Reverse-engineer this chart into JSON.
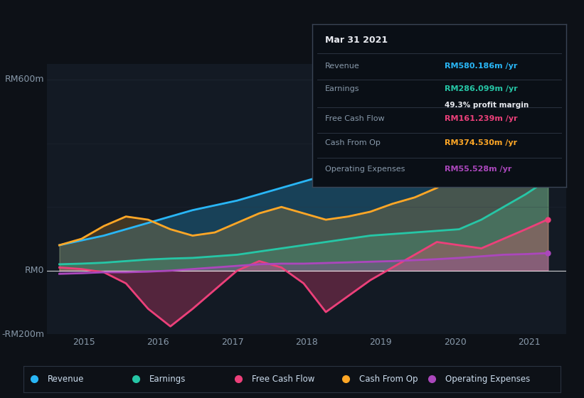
{
  "background_color": "#0d1117",
  "plot_bg_color": "#131a24",
  "ylim": [
    -200,
    650
  ],
  "xlim": [
    2014.5,
    2021.5
  ],
  "xticks": [
    2015,
    2016,
    2017,
    2018,
    2019,
    2020,
    2021
  ],
  "grid_color": "#2a3340",
  "colors": {
    "revenue": "#29b6f6",
    "earnings": "#26c6a6",
    "free_cash_flow": "#ec407a",
    "cash_from_op": "#ffa726",
    "operating_expenses": "#ab47bc"
  },
  "tooltip": {
    "date": "Mar 31 2021",
    "revenue_label": "Revenue",
    "revenue_value": "RM580.186m /yr",
    "earnings_label": "Earnings",
    "earnings_value": "RM286.099m /yr",
    "profit_margin": "49.3% profit margin",
    "fcf_label": "Free Cash Flow",
    "fcf_value": "RM161.239m /yr",
    "cfo_label": "Cash From Op",
    "cfo_value": "RM374.530m /yr",
    "opex_label": "Operating Expenses",
    "opex_value": "RM55.528m /yr"
  },
  "legend": [
    {
      "label": "Revenue",
      "color": "#29b6f6"
    },
    {
      "label": "Earnings",
      "color": "#26c6a6"
    },
    {
      "label": "Free Cash Flow",
      "color": "#ec407a"
    },
    {
      "label": "Cash From Op",
      "color": "#ffa726"
    },
    {
      "label": "Operating Expenses",
      "color": "#ab47bc"
    }
  ],
  "revenue": [
    80,
    95,
    110,
    130,
    150,
    170,
    190,
    205,
    220,
    240,
    260,
    280,
    300,
    330,
    360,
    390,
    420,
    450,
    480,
    510,
    540,
    570,
    580
  ],
  "earnings": [
    20,
    22,
    25,
    30,
    35,
    38,
    40,
    45,
    50,
    60,
    70,
    80,
    90,
    100,
    110,
    115,
    120,
    125,
    130,
    160,
    200,
    240,
    286
  ],
  "free_cash_flow": [
    10,
    5,
    -5,
    -40,
    -120,
    -175,
    -120,
    -60,
    0,
    30,
    10,
    -40,
    -130,
    -80,
    -30,
    10,
    50,
    90,
    80,
    70,
    100,
    130,
    161
  ],
  "cash_from_op": [
    80,
    100,
    140,
    170,
    160,
    130,
    110,
    120,
    150,
    180,
    200,
    180,
    160,
    170,
    185,
    210,
    230,
    260,
    310,
    350,
    330,
    290,
    374
  ],
  "operating_expenses": [
    -10,
    -8,
    -5,
    -5,
    -3,
    0,
    5,
    10,
    15,
    20,
    22,
    22,
    24,
    26,
    28,
    30,
    33,
    36,
    40,
    45,
    50,
    52,
    55
  ],
  "x_start": 2014.67,
  "x_end": 2021.25
}
